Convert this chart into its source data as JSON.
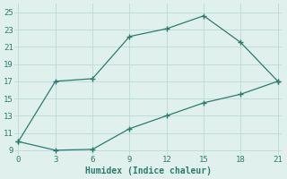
{
  "xlabel": "Humidex (Indice chaleur)",
  "x": [
    0,
    3,
    6,
    9,
    12,
    15,
    18,
    21
  ],
  "y_upper": [
    10.0,
    17.0,
    17.3,
    22.2,
    23.1,
    24.6,
    21.5,
    17.0
  ],
  "y_lower": [
    10.0,
    9.0,
    9.1,
    11.5,
    13.0,
    14.5,
    15.5,
    17.0
  ],
  "line_color": "#2a7d6e",
  "bg_color": "#dff0ed",
  "grid_color": "#c0ddd9",
  "ylim": [
    8.5,
    26
  ],
  "xlim": [
    -0.3,
    21.3
  ],
  "yticks": [
    9,
    11,
    13,
    15,
    17,
    19,
    21,
    23,
    25
  ],
  "xticks": [
    0,
    3,
    6,
    9,
    12,
    15,
    18,
    21
  ],
  "markersize": 4,
  "linewidth": 0.9,
  "tick_fontsize": 6.5,
  "xlabel_fontsize": 7
}
